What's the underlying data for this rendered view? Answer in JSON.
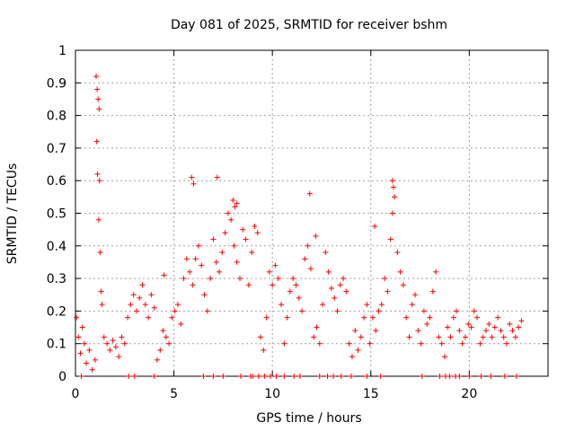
{
  "chart_data": {
    "type": "scatter",
    "title": "Day 081 of 2025, SRMTID for receiver bshm",
    "xlabel": "GPS time / hours",
    "ylabel": "SRMTID / TECUs",
    "xlim": [
      0,
      24
    ],
    "ylim": [
      0,
      1
    ],
    "x_ticks": [
      0,
      5,
      10,
      15,
      20
    ],
    "y_ticks": [
      0,
      0.1,
      0.2,
      0.3,
      0.4,
      0.5,
      0.6,
      0.7,
      0.8,
      0.9,
      1
    ],
    "x_tick_labels": [
      "0",
      "5",
      "10",
      "15",
      "20"
    ],
    "y_tick_labels": [
      "0",
      "0.1",
      "0.2",
      "0.3",
      "0.4",
      "0.5",
      "0.6",
      "0.7",
      "0.8",
      "0.9",
      "1"
    ],
    "grid": true,
    "marker": "+",
    "marker_color": "#ff0000",
    "series": [
      {
        "name": "SRMTID",
        "x": [
          0.05,
          0.15,
          0.25,
          0.35,
          0.45,
          0.55,
          0.7,
          0.85,
          1.0,
          1.08,
          1.12,
          1.18,
          1.25,
          1.3,
          1.35,
          1.45,
          1.6,
          1.75,
          1.9,
          2.05,
          2.2,
          2.35,
          2.5,
          2.65,
          2.8,
          2.95,
          3.1,
          3.25,
          3.4,
          3.55,
          3.7,
          3.85,
          4.0,
          4.15,
          4.3,
          4.45,
          4.6,
          4.75,
          4.9,
          5.05,
          5.2,
          5.35,
          5.5,
          5.65,
          5.8,
          5.95,
          6.1,
          6.25,
          6.4,
          6.55,
          6.7,
          6.85,
          7.0,
          7.15,
          7.3,
          7.45,
          7.6,
          7.75,
          7.9,
          8.05,
          8.2,
          8.35,
          8.5,
          8.65,
          8.8,
          8.95,
          9.1,
          9.25,
          9.4,
          9.55,
          9.7,
          9.85,
          10.0,
          10.15,
          10.3,
          10.45,
          10.6,
          10.75,
          10.9,
          11.05,
          11.2,
          11.35,
          11.5,
          11.65,
          11.8,
          11.95,
          12.1,
          12.25,
          12.4,
          12.55,
          12.7,
          12.85,
          13.0,
          13.15,
          13.3,
          13.45,
          13.6,
          13.75,
          13.9,
          14.05,
          14.2,
          14.35,
          14.5,
          14.65,
          14.8,
          14.95,
          15.1,
          15.25,
          15.4,
          15.55,
          15.7,
          15.85,
          16.0,
          16.1,
          16.2,
          16.35,
          16.5,
          16.65,
          16.8,
          16.95,
          17.1,
          17.25,
          17.4,
          17.55,
          17.7,
          17.85,
          18.0,
          18.15,
          18.3,
          18.45,
          18.6,
          18.75,
          18.9,
          19.05,
          19.2,
          19.35,
          19.5,
          19.65,
          19.8,
          19.95,
          20.1,
          20.25,
          20.4,
          20.55,
          20.7,
          20.85,
          21.0,
          21.15,
          21.3,
          21.45,
          21.6,
          21.75,
          21.9,
          22.05,
          22.2,
          22.35,
          22.5,
          22.65,
          1.05,
          1.1,
          1.15,
          1.2,
          1.22,
          5.9,
          6.0,
          7.2,
          8.0,
          8.1,
          8.2,
          11.9,
          12.2,
          15.2,
          16.1,
          16.15,
          4.5,
          9.0,
          9.3,
          9.6,
          9.9,
          10.2,
          10.6,
          11.1,
          11.4,
          13.1,
          13.5,
          14.0,
          14.8,
          15.5,
          18.5,
          19.0,
          19.5,
          20.0,
          20.6,
          21.1,
          21.8,
          22.4,
          0.3,
          2.7,
          3.0,
          4.0,
          6.5,
          7.0,
          7.5,
          8.4,
          8.9,
          12.4,
          12.8,
          17.6,
          18.8,
          19.3
        ],
        "y": [
          0.18,
          0.12,
          0.07,
          0.15,
          0.1,
          0.04,
          0.08,
          0.02,
          0.05,
          0.72,
          0.62,
          0.48,
          0.38,
          0.26,
          0.22,
          0.12,
          0.1,
          0.08,
          0.11,
          0.09,
          0.06,
          0.12,
          0.1,
          0.18,
          0.22,
          0.25,
          0.2,
          0.24,
          0.28,
          0.22,
          0.18,
          0.25,
          0.21,
          0.05,
          0.08,
          0.14,
          0.12,
          0.1,
          0.18,
          0.2,
          0.22,
          0.16,
          0.3,
          0.36,
          0.32,
          0.28,
          0.36,
          0.4,
          0.34,
          0.25,
          0.2,
          0.3,
          0.42,
          0.35,
          0.32,
          0.38,
          0.44,
          0.5,
          0.48,
          0.4,
          0.35,
          0.3,
          0.45,
          0.42,
          0.28,
          0.38,
          0.46,
          0.44,
          0.12,
          0.08,
          0.18,
          0.32,
          0.28,
          0.34,
          0.3,
          0.22,
          0.1,
          0.18,
          0.26,
          0.3,
          0.28,
          0.24,
          0.2,
          0.36,
          0.4,
          0.33,
          0.12,
          0.15,
          0.1,
          0.22,
          0.38,
          0.32,
          0.27,
          0.24,
          0.2,
          0.28,
          0.3,
          0.26,
          0.1,
          0.06,
          0.14,
          0.08,
          0.12,
          0.18,
          0.22,
          0.1,
          0.18,
          0.14,
          0.2,
          0.22,
          0.3,
          0.26,
          0.42,
          0.5,
          0.55,
          0.38,
          0.32,
          0.28,
          0.18,
          0.12,
          0.22,
          0.25,
          0.14,
          0.1,
          0.2,
          0.16,
          0.18,
          0.26,
          0.32,
          0.12,
          0.1,
          0.06,
          0.15,
          0.12,
          0.18,
          0.2,
          0.14,
          0.1,
          0.12,
          0.16,
          0.15,
          0.2,
          0.18,
          0.1,
          0.12,
          0.14,
          0.16,
          0.12,
          0.15,
          0.18,
          0.14,
          0.12,
          0.1,
          0.16,
          0.14,
          0.12,
          0.15,
          0.17,
          0.92,
          0.88,
          0.85,
          0.82,
          0.6,
          0.61,
          0.59,
          0.61,
          0.54,
          0.52,
          0.53,
          0.56,
          0.43,
          0.46,
          0.6,
          0.58,
          0.31,
          0.0,
          0.0,
          0.0,
          0.0,
          0.0,
          0.0,
          0.0,
          0.0,
          0.0,
          0.0,
          0.0,
          0.0,
          0.0,
          0.0,
          0.0,
          0.0,
          0.0,
          0.0,
          0.0,
          0.0,
          0.0,
          0.0,
          0.0,
          0.0,
          0.0,
          0.0,
          0.0,
          0.0,
          0.0,
          0.0,
          0.0,
          0.0,
          0.0,
          0.0,
          0.0
        ]
      }
    ]
  }
}
